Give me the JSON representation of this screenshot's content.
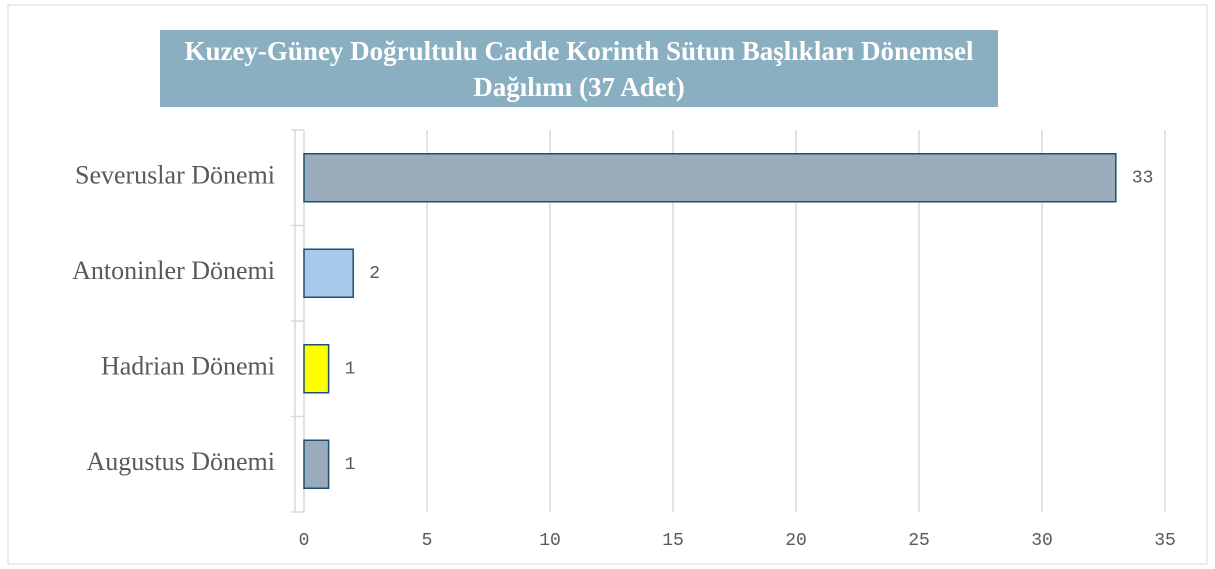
{
  "chart_data": {
    "type": "bar",
    "orientation": "horizontal",
    "title": "Kuzey-Güney Doğrultulu Cadde Korinth Sütun Başlıkları Dönemsel Dağılımı (37 Adet)",
    "categories": [
      "Severuslar Dönemi",
      "Antoninler Dönemi",
      "Hadrian Dönemi",
      "Augustus Dönemi"
    ],
    "values": [
      33,
      2,
      1,
      1
    ],
    "colors": [
      "#9aabbb",
      "#a9c9ea",
      "#ffff00",
      "#9aabbb"
    ],
    "xlim": [
      0,
      35
    ],
    "xticks": [
      0,
      5,
      10,
      15,
      20,
      25,
      30,
      35
    ],
    "grid": true
  }
}
